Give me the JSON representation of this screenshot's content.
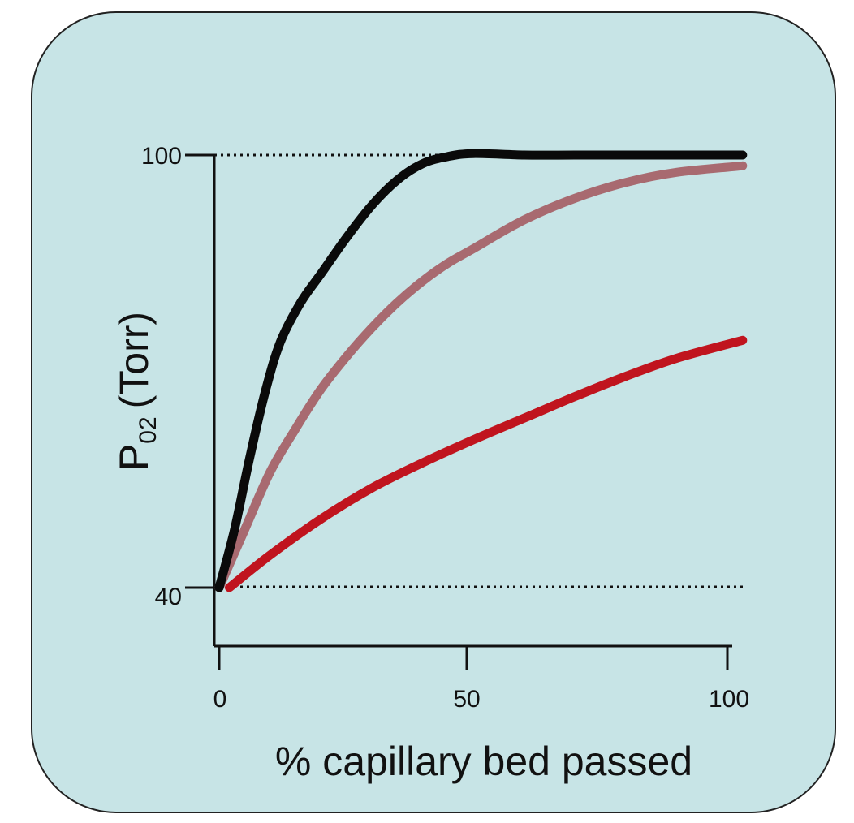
{
  "chart_data": {
    "type": "line",
    "title": "",
    "xlabel": "% capillary bed passed",
    "ylabel": {
      "main": "P",
      "subscript": "02",
      "unit": "(Torr)"
    },
    "xlim": [
      0,
      100
    ],
    "x_ticks": [
      "0",
      "50",
      "100"
    ],
    "x_tick_values": [
      0,
      50,
      100
    ],
    "y_ticks": [
      "40",
      "100"
    ],
    "y_tick_values": [
      40,
      100
    ],
    "reference_lines": [
      {
        "y": 100,
        "style": "dotted"
      },
      {
        "y": 40,
        "style": "dotted"
      }
    ],
    "grid": false,
    "legend": "none",
    "series": [
      {
        "color": "#0a0a0a",
        "x": [
          0,
          3,
          6,
          9,
          12,
          16,
          20,
          25,
          30,
          35,
          40,
          45,
          50,
          60,
          70,
          80,
          90,
          103
        ],
        "values": [
          40,
          48,
          58,
          67,
          74,
          79.5,
          83.5,
          88.5,
          93,
          96.5,
          98.8,
          99.8,
          100.2,
          100,
          100,
          100,
          100,
          100
        ]
      },
      {
        "color": "#a86a70",
        "x": [
          0,
          5,
          10,
          15,
          20,
          25,
          30,
          35,
          40,
          45,
          50,
          60,
          70,
          80,
          90,
          103
        ],
        "values": [
          40,
          48,
          56,
          62,
          67.5,
          72,
          76,
          79.5,
          82.5,
          85,
          87,
          91,
          94,
          96.2,
          97.6,
          98.5
        ]
      },
      {
        "color": "#c0141e",
        "x": [
          2,
          10,
          20,
          30,
          40,
          50,
          60,
          70,
          80,
          90,
          103
        ],
        "values": [
          40,
          44.5,
          49.5,
          53.8,
          57.3,
          60.5,
          63.5,
          66.5,
          69.3,
          71.8,
          74.3
        ]
      }
    ]
  }
}
